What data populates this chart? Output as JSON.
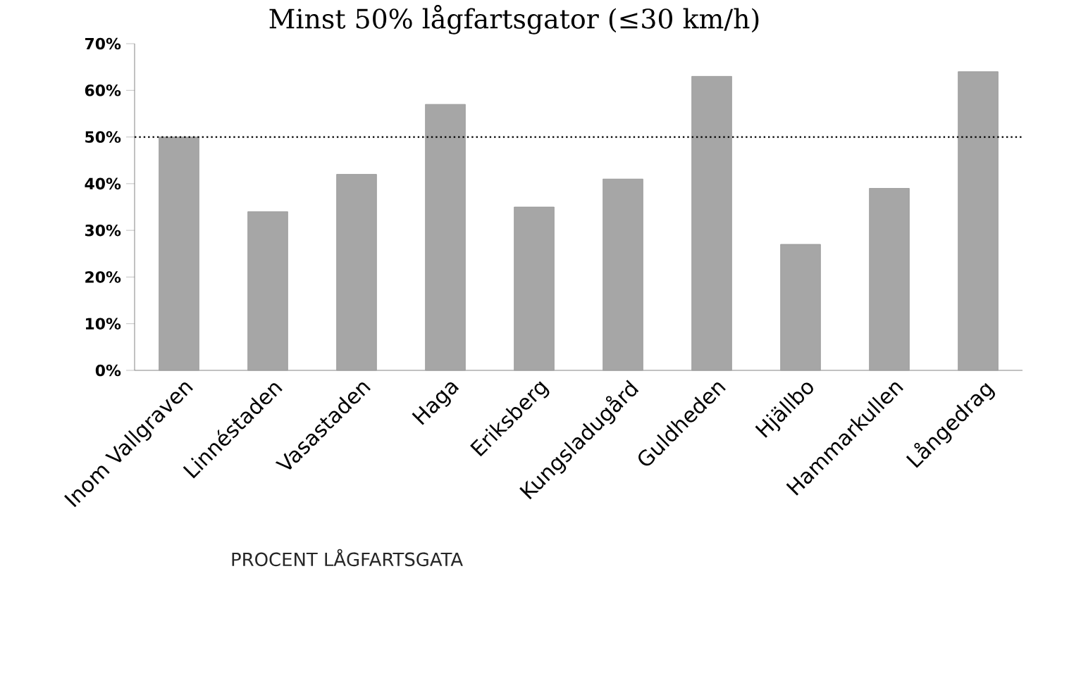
{
  "chart_data": {
    "type": "bar",
    "title": "Minst 50% lågfartsgator (≤30 km/h)",
    "categories": [
      "Inom Vallgraven",
      "Linnéstaden",
      "Vasastaden",
      "Haga",
      "Eriksberg",
      "Kungsladugård",
      "Guldheden",
      "Hjällbo",
      "Hammarkullen",
      "Långedrag"
    ],
    "values": [
      50,
      34,
      42,
      57,
      35,
      41,
      63,
      27,
      39,
      64
    ],
    "color": "#a6a6a6",
    "ylim": [
      0,
      70
    ],
    "yticks": [
      {
        "value": 0,
        "label": "0%"
      },
      {
        "value": 10,
        "label": "10%"
      },
      {
        "value": 20,
        "label": "20%"
      },
      {
        "value": 30,
        "label": "30%"
      },
      {
        "value": 40,
        "label": "40%"
      },
      {
        "value": 50,
        "label": "50%"
      },
      {
        "value": 60,
        "label": "60%"
      },
      {
        "value": 70,
        "label": "70%"
      }
    ],
    "ref_lines": [
      {
        "axis": "y",
        "value": 50,
        "line_style": "dotted",
        "color": "#000000"
      }
    ],
    "annotations": [
      "PROCENT LÅGFARTSGATA"
    ]
  }
}
